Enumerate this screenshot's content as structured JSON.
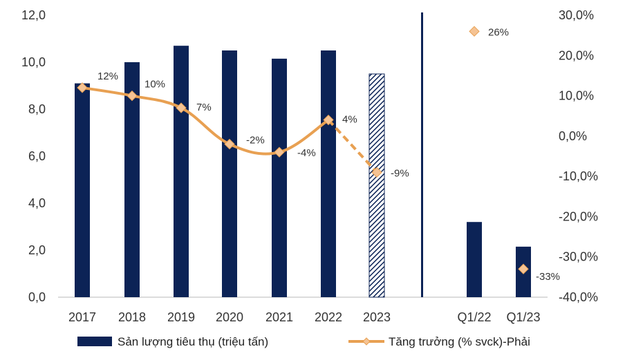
{
  "chart_data": {
    "type": "bar",
    "categories": [
      "2017",
      "2018",
      "2019",
      "2020",
      "2021",
      "2022",
      "2023",
      "Q1/22",
      "Q1/23"
    ],
    "series": [
      {
        "name": "Sản lượng tiêu thụ (triệu tấn)",
        "type": "bar",
        "axis": "left",
        "values": [
          9.1,
          10.0,
          10.7,
          10.5,
          10.15,
          10.5,
          9.5,
          3.2,
          2.15
        ],
        "hatched": [
          "2023"
        ]
      },
      {
        "name": "Tăng trưởng (% svck)-Phải",
        "type": "line",
        "axis": "right",
        "values": [
          12,
          10,
          7,
          -2,
          -4,
          4,
          -9,
          26,
          -33
        ],
        "labels": [
          "12%",
          "10%",
          "7%",
          "-2%",
          "-4%",
          "4%",
          "-9%",
          "26%",
          "-33%"
        ],
        "dashed_segment": [
          "2022",
          "2023"
        ],
        "markers_only": [
          "Q1/22",
          "Q1/23"
        ]
      }
    ],
    "y_left": {
      "range": [
        0,
        12
      ],
      "ticks": [
        "0,0",
        "2,0",
        "4,0",
        "6,0",
        "8,0",
        "10,0",
        "12,0"
      ]
    },
    "y_right": {
      "range": [
        -40,
        30
      ],
      "ticks": [
        "-40,0%",
        "-30,0%",
        "-20,0%",
        "-10,0%",
        "0,0%",
        "10,0%",
        "20,0%",
        "30,0%"
      ]
    },
    "separator_after": "2023",
    "grid": false,
    "legend_position": "bottom",
    "colors": {
      "bar": "#0c2356",
      "line": "#e8a052",
      "marker": "#f5c394",
      "separator": "#0c2356"
    }
  }
}
